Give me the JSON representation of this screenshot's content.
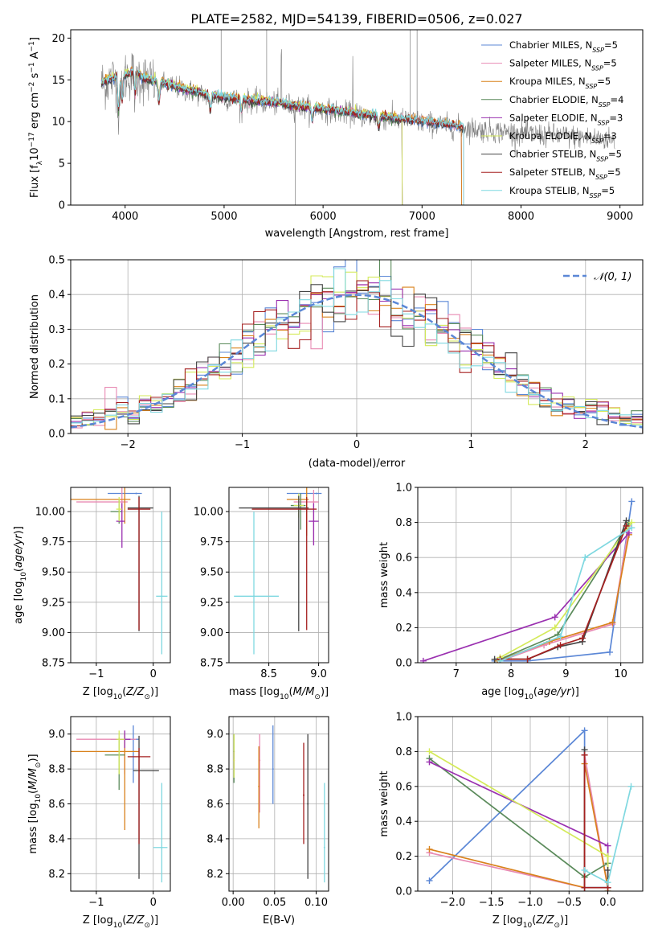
{
  "figure_title": "PLATE=2582, MJD=54139, FIBERID=0506, z=0.027",
  "series": [
    {
      "name": "Chabrier MILES",
      "nssp": "5",
      "color": "#5b87d6"
    },
    {
      "name": "Salpeter MILES",
      "nssp": "5",
      "color": "#e88ab3"
    },
    {
      "name": "Kroupa MILES",
      "nssp": "5",
      "color": "#d9821c"
    },
    {
      "name": "Chabrier ELODIE",
      "nssp": "4",
      "color": "#5a8a5a"
    },
    {
      "name": "Salpeter ELODIE",
      "nssp": "3",
      "color": "#9a30b0"
    },
    {
      "name": "Kroupa ELODIE",
      "nssp": "3",
      "color": "#d4ea5a"
    },
    {
      "name": "Chabrier STELIB",
      "nssp": "5",
      "color": "#444444"
    },
    {
      "name": "Salpeter STELIB",
      "nssp": "5",
      "color": "#a52020"
    },
    {
      "name": "Kroupa STELIB",
      "nssp": "5",
      "color": "#7fd8e0"
    }
  ],
  "chart_data": [
    {
      "id": "spectrum",
      "type": "line",
      "xlabel": "wavelength [Angstrom, rest frame]",
      "ylabel": "Flux [f_λ 10^-17 erg cm^-2 s^-1 A^-1]",
      "xlim": [
        3450,
        9230
      ],
      "ylim": [
        0,
        21
      ],
      "xticks": [
        4000,
        5000,
        6000,
        7000,
        8000,
        9000
      ],
      "yticks": [
        0,
        5,
        10,
        15,
        20
      ],
      "data_color": "#808080",
      "continuum": {
        "x": [
          3760,
          3900,
          4000,
          4100,
          4200,
          4400,
          4600,
          4800,
          5000,
          5200,
          5500,
          6000,
          6500,
          7000,
          7200,
          7400,
          7600,
          7800,
          8000,
          8500,
          9000
        ],
        "y": [
          14.5,
          15.2,
          15.5,
          15.8,
          15.0,
          14.5,
          13.8,
          13.2,
          12.8,
          12.5,
          12.2,
          11.4,
          10.6,
          9.9,
          9.6,
          9.3,
          9.0,
          8.8,
          8.6,
          8.2,
          7.8
        ]
      },
      "model_end_wavelengths": [
        7400,
        7400,
        7400,
        6800,
        6800,
        6800,
        7420,
        7420,
        7420
      ]
    },
    {
      "id": "residuals",
      "type": "line",
      "xlabel": "(data-model)/error",
      "ylabel": "Normed distribution",
      "xlim": [
        -2.5,
        2.5
      ],
      "ylim": [
        0,
        0.5
      ],
      "xticks": [
        -2,
        -1,
        0,
        1,
        2
      ],
      "yticks": [
        0.0,
        0.1,
        0.2,
        0.3,
        0.4,
        0.5
      ],
      "legend": "𝒩(0, 1)",
      "bin_width": 0.1,
      "grid": true
    },
    {
      "id": "age-vs-Z",
      "type": "scatter",
      "xlabel": "Z [log10(Z/Z☉)]",
      "ylabel": "age [log10(age/yr)]",
      "xlim": [
        -1.45,
        0.3
      ],
      "ylim": [
        8.75,
        10.2
      ],
      "xticks": [
        -1,
        0
      ],
      "yticks": [
        8.75,
        9.0,
        9.25,
        9.5,
        9.75,
        10.0
      ],
      "points": [
        {
          "s": 0,
          "x": -0.3,
          "y": 10.15,
          "xerr": [
            0.5,
            0.1
          ],
          "yerr": [
            0,
            0
          ]
        },
        {
          "s": 1,
          "x": -0.55,
          "y": 10.08,
          "xerr": [
            0.8,
            0.1
          ],
          "yerr": [
            0.15,
            0.3
          ]
        },
        {
          "s": 2,
          "x": -0.5,
          "y": 10.1,
          "xerr": [
            0.95,
            0.1
          ],
          "yerr": [
            0.2,
            0.5
          ]
        },
        {
          "s": 3,
          "x": -0.6,
          "y": 10.0,
          "xerr": [
            0.15,
            0.05
          ],
          "yerr": [
            0.1,
            0.1
          ]
        },
        {
          "s": 4,
          "x": -0.55,
          "y": 9.92,
          "xerr": [
            0.1,
            0.05
          ],
          "yerr": [
            0.22,
            0.15
          ]
        },
        {
          "s": 5,
          "x": -0.6,
          "y": 10.02,
          "xerr": [
            0.05,
            0.05
          ],
          "yerr": [
            0.1,
            0.1
          ]
        },
        {
          "s": 6,
          "x": -0.25,
          "y": 10.03,
          "xerr": [
            0.2,
            0.25
          ],
          "yerr": [
            1.02,
            0.1
          ]
        },
        {
          "s": 7,
          "x": -0.25,
          "y": 10.02,
          "xerr": [
            0.2,
            0.2
          ],
          "yerr": [
            1.0,
            0.1
          ]
        },
        {
          "s": 8,
          "x": 0.15,
          "y": 9.3,
          "xerr": [
            0.1,
            0.1
          ],
          "yerr": [
            0.48,
            0.7
          ]
        }
      ]
    },
    {
      "id": "age-vs-mass",
      "type": "scatter",
      "xlabel": "mass [log10(M/M☉)]",
      "ylabel": "",
      "xlim": [
        8.1,
        9.1
      ],
      "ylim": [
        8.75,
        10.2
      ],
      "xticks": [
        8.5,
        9.0
      ],
      "yticks": [
        8.75,
        9.0,
        9.25,
        9.5,
        9.75,
        10.0
      ],
      "points": [
        {
          "s": 0,
          "x": 8.98,
          "y": 10.15,
          "xerr": [
            0.3,
            0.05
          ],
          "yerr": [
            0,
            0
          ]
        },
        {
          "s": 1,
          "x": 8.95,
          "y": 10.08,
          "xerr": [
            0.2,
            0.05
          ],
          "yerr": [
            0.35,
            0.1
          ]
        },
        {
          "s": 2,
          "x": 8.88,
          "y": 10.1,
          "xerr": [
            0.2,
            0.02
          ],
          "yerr": [
            0.3,
            0.1
          ]
        },
        {
          "s": 3,
          "x": 8.82,
          "y": 10.05,
          "xerr": [
            0.1,
            0.05
          ],
          "yerr": [
            0.2,
            0.1
          ]
        },
        {
          "s": 4,
          "x": 8.95,
          "y": 9.92,
          "xerr": [
            0.05,
            0.05
          ],
          "yerr": [
            0.2,
            0.15
          ]
        },
        {
          "s": 5,
          "x": 8.8,
          "y": 10.05,
          "xerr": [
            0.05,
            0.05
          ],
          "yerr": [
            0.1,
            0.1
          ]
        },
        {
          "s": 6,
          "x": 8.8,
          "y": 10.03,
          "xerr": [
            0.6,
            0.1
          ],
          "yerr": [
            1.02,
            0.1
          ]
        },
        {
          "s": 7,
          "x": 8.88,
          "y": 10.02,
          "xerr": [
            0.55,
            0.1
          ],
          "yerr": [
            1.0,
            0.1
          ]
        },
        {
          "s": 8,
          "x": 8.35,
          "y": 9.3,
          "xerr": [
            0.2,
            0.25
          ],
          "yerr": [
            0.48,
            0.7
          ]
        }
      ]
    },
    {
      "id": "weight-vs-age",
      "type": "line",
      "xlabel": "age [log10(age/yr)]",
      "ylabel": "mass weight",
      "xlim": [
        6.3,
        10.4
      ],
      "ylim": [
        0,
        1
      ],
      "xticks": [
        7,
        8,
        9,
        10
      ],
      "yticks": [
        0.0,
        0.2,
        0.4,
        0.6,
        0.8,
        1.0
      ],
      "grid": true,
      "series": [
        {
          "s": 0,
          "x": [
            7.7,
            8.3,
            9.8,
            10.2
          ],
          "y": [
            0.01,
            0.01,
            0.06,
            0.92
          ]
        },
        {
          "s": 1,
          "x": [
            7.8,
            8.6,
            9.85,
            10.15
          ],
          "y": [
            0.01,
            0.1,
            0.22,
            0.78
          ]
        },
        {
          "s": 2,
          "x": [
            7.75,
            8.7,
            9.85,
            10.15
          ],
          "y": [
            0.01,
            0.12,
            0.23,
            0.73
          ]
        },
        {
          "s": 3,
          "x": [
            7.8,
            8.85,
            10.15
          ],
          "y": [
            0.02,
            0.16,
            0.8
          ]
        },
        {
          "s": 4,
          "x": [
            6.4,
            8.8,
            10.15
          ],
          "y": [
            0.01,
            0.26,
            0.74
          ]
        },
        {
          "s": 5,
          "x": [
            7.8,
            8.8,
            10.2
          ],
          "y": [
            0.03,
            0.2,
            0.8
          ]
        },
        {
          "s": 6,
          "x": [
            7.7,
            8.3,
            8.85,
            9.3,
            10.1
          ],
          "y": [
            0.02,
            0.02,
            0.09,
            0.12,
            0.81
          ]
        },
        {
          "s": 7,
          "x": [
            7.8,
            8.3,
            8.9,
            9.3,
            10.1
          ],
          "y": [
            0.02,
            0.02,
            0.1,
            0.14,
            0.78
          ]
        },
        {
          "s": 8,
          "x": [
            7.8,
            8.9,
            9.35,
            10.2
          ],
          "y": [
            0.01,
            0.15,
            0.6,
            0.77
          ]
        }
      ]
    },
    {
      "id": "mass-vs-Z",
      "type": "scatter",
      "xlabel": "Z [log10(Z/Z☉)]",
      "ylabel": "mass [log10(M/M☉)]",
      "xlim": [
        -1.45,
        0.3
      ],
      "ylim": [
        8.1,
        9.1
      ],
      "xticks": [
        -1,
        0
      ],
      "yticks": [
        8.2,
        8.4,
        8.6,
        8.8,
        9.0
      ],
      "points": [
        {
          "s": 0,
          "x": -0.35,
          "y": 8.97,
          "xerr": [
            0.4,
            0.1
          ],
          "yerr": [
            0.25,
            0.08
          ]
        },
        {
          "s": 1,
          "x": -0.5,
          "y": 8.97,
          "xerr": [
            0.85,
            0.2
          ],
          "yerr": [
            0.2,
            0.05
          ]
        },
        {
          "s": 2,
          "x": -0.5,
          "y": 8.9,
          "xerr": [
            0.95,
            0.25
          ],
          "yerr": [
            0.45,
            0.1
          ]
        },
        {
          "s": 3,
          "x": -0.6,
          "y": 8.88,
          "xerr": [
            0.25,
            0.1
          ],
          "yerr": [
            0.2,
            0.1
          ]
        },
        {
          "s": 4,
          "x": -0.5,
          "y": 8.97,
          "xerr": [
            0.15,
            0.1
          ],
          "yerr": [
            0.05,
            0.05
          ]
        },
        {
          "s": 5,
          "x": -0.6,
          "y": 8.97,
          "xerr": [
            0.05,
            0.1
          ],
          "yerr": [
            0.2,
            0.05
          ]
        },
        {
          "s": 6,
          "x": -0.25,
          "y": 8.79,
          "xerr": [
            0.1,
            0.35
          ],
          "yerr": [
            0.62,
            0.2
          ]
        },
        {
          "s": 7,
          "x": -0.25,
          "y": 8.87,
          "xerr": [
            0.2,
            0.2
          ],
          "yerr": [
            0.5,
            0.05
          ]
        },
        {
          "s": 8,
          "x": 0.15,
          "y": 8.35,
          "xerr": [
            0.15,
            0.1
          ],
          "yerr": [
            0.2,
            0.37
          ]
        }
      ]
    },
    {
      "id": "mass-vs-EBV",
      "type": "scatter",
      "xlabel": "E(B-V)",
      "ylabel": "",
      "xlim": [
        -0.005,
        0.115
      ],
      "ylim": [
        8.1,
        9.1
      ],
      "xticks": [
        0.0,
        0.05,
        0.1
      ],
      "yticks": [
        8.2,
        8.4,
        8.6,
        8.8,
        9.0
      ],
      "points": [
        {
          "s": 0,
          "x": 0.048,
          "y": 8.8,
          "yerr": [
            0.2,
            0.25
          ]
        },
        {
          "s": 1,
          "x": 0.032,
          "y": 8.85,
          "yerr": [
            0.3,
            0.15
          ]
        },
        {
          "s": 2,
          "x": 0.031,
          "y": 8.7,
          "yerr": [
            0.24,
            0.23
          ]
        },
        {
          "s": 3,
          "x": 0.001,
          "y": 8.9,
          "yerr": [
            0.18,
            0.1
          ]
        },
        {
          "s": 4,
          "x": 0.001,
          "y": 8.85,
          "yerr": [
            0.05,
            0.05
          ]
        },
        {
          "s": 5,
          "x": 0.001,
          "y": 8.85,
          "yerr": [
            0.1,
            0.15
          ]
        },
        {
          "s": 6,
          "x": 0.09,
          "y": 8.6,
          "yerr": [
            0.43,
            0.4
          ]
        },
        {
          "s": 7,
          "x": 0.085,
          "y": 8.65,
          "yerr": [
            0.28,
            0.3
          ]
        },
        {
          "s": 8,
          "x": 0.11,
          "y": 8.35,
          "yerr": [
            0.2,
            0.37
          ]
        }
      ]
    },
    {
      "id": "weight-vs-Z",
      "type": "line",
      "xlabel": "Z [log10(Z/Z☉)]",
      "ylabel": "mass weight",
      "xlim": [
        -2.45,
        0.45
      ],
      "ylim": [
        0,
        1
      ],
      "xticks": [
        -2.0,
        -1.5,
        -1.0,
        -0.5,
        0.0
      ],
      "yticks": [
        0.0,
        0.2,
        0.4,
        0.6,
        0.8,
        1.0
      ],
      "grid": true,
      "series": [
        {
          "s": 0,
          "x": [
            -2.3,
            -0.3,
            -0.3,
            0.0
          ],
          "y": [
            0.06,
            0.92,
            0.02,
            0.02
          ]
        },
        {
          "s": 1,
          "x": [
            -2.3,
            -0.3,
            -0.3,
            0.0
          ],
          "y": [
            0.22,
            0.02,
            0.78,
            0.02
          ]
        },
        {
          "s": 2,
          "x": [
            -2.3,
            -0.3,
            -0.3,
            0.0
          ],
          "y": [
            0.24,
            0.02,
            0.73,
            0.02
          ]
        },
        {
          "s": 3,
          "x": [
            -2.3,
            -0.3,
            0.0
          ],
          "y": [
            0.76,
            0.08,
            0.16
          ]
        },
        {
          "s": 4,
          "x": [
            -2.3,
            0.0,
            0.0
          ],
          "y": [
            0.74,
            0.26,
            0.0
          ]
        },
        {
          "s": 5,
          "x": [
            -2.3,
            0.0,
            0.0
          ],
          "y": [
            0.8,
            0.2,
            0.0
          ]
        },
        {
          "s": 6,
          "x": [
            -0.3,
            -0.3,
            0.0,
            0.0
          ],
          "y": [
            0.81,
            0.02,
            0.02,
            0.12
          ]
        },
        {
          "s": 7,
          "x": [
            -0.3,
            -0.3,
            0.0
          ],
          "y": [
            0.78,
            0.02,
            0.02
          ]
        },
        {
          "s": 8,
          "x": [
            -0.3,
            0.0,
            0.3
          ],
          "y": [
            0.12,
            0.05,
            0.6
          ]
        }
      ]
    }
  ]
}
